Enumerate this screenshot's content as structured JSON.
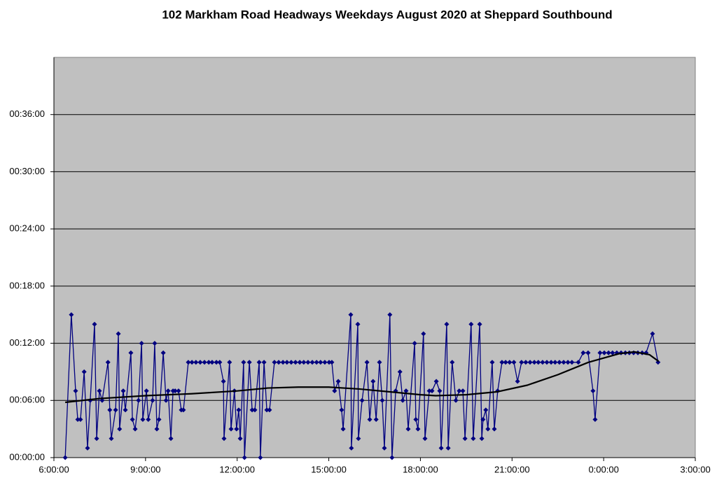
{
  "chart_data": {
    "type": "line",
    "title": "102 Markham Road Headways Weekdays August 2020 at Sheppard Southbound",
    "x": [
      6.37,
      6.57,
      6.71,
      6.78,
      6.87,
      6.99,
      7.1,
      7.19,
      7.33,
      7.4,
      7.49,
      7.58,
      7.77,
      7.83,
      7.88,
      8.02,
      8.11,
      8.15,
      8.27,
      8.34,
      8.52,
      8.57,
      8.66,
      8.77,
      8.87,
      8.91,
      9.03,
      9.09,
      9.23,
      9.3,
      9.37,
      9.44,
      9.58,
      9.67,
      9.74,
      9.83,
      9.9,
      9.97,
      10.08,
      10.17,
      10.24,
      10.4,
      10.52,
      10.65,
      10.79,
      10.93,
      11.07,
      11.18,
      11.32,
      11.43,
      11.55,
      11.57,
      11.75,
      11.8,
      11.91,
      11.98,
      12.05,
      12.1,
      12.21,
      12.24,
      12.4,
      12.49,
      12.58,
      12.72,
      12.76,
      12.88,
      12.97,
      13.06,
      13.22,
      13.36,
      13.5,
      13.63,
      13.77,
      13.91,
      14.05,
      14.18,
      14.32,
      14.46,
      14.6,
      14.73,
      14.87,
      15.01,
      15.1,
      15.19,
      15.31,
      15.42,
      15.47,
      15.72,
      15.74,
      15.95,
      15.97,
      16.09,
      16.25,
      16.34,
      16.45,
      16.55,
      16.66,
      16.75,
      16.82,
      17.0,
      17.07,
      17.19,
      17.33,
      17.42,
      17.53,
      17.6,
      17.81,
      17.85,
      17.92,
      18.1,
      18.15,
      18.29,
      18.38,
      18.52,
      18.63,
      18.68,
      18.86,
      18.91,
      19.04,
      19.16,
      19.27,
      19.39,
      19.46,
      19.66,
      19.73,
      19.94,
      20.01,
      20.05,
      20.14,
      20.21,
      20.35,
      20.42,
      20.53,
      20.67,
      20.79,
      20.92,
      21.06,
      21.18,
      21.31,
      21.45,
      21.59,
      21.73,
      21.86,
      22.0,
      22.14,
      22.28,
      22.41,
      22.55,
      22.69,
      22.83,
      22.96,
      23.17,
      23.33,
      23.49,
      23.65,
      23.72,
      23.88,
      24.02,
      24.16,
      24.29,
      24.43,
      24.57,
      24.71,
      24.84,
      24.98,
      25.12,
      25.26,
      25.39,
      25.6,
      25.78
    ],
    "values": [
      0,
      15,
      7,
      4,
      4,
      9,
      1,
      6,
      14,
      2,
      7,
      6,
      10,
      5,
      2,
      5,
      13,
      3,
      7,
      5,
      11,
      4,
      3,
      6,
      12,
      4,
      7,
      4,
      6,
      12,
      3,
      4,
      11,
      6,
      7,
      2,
      7,
      7,
      7,
      5,
      5,
      10,
      10,
      10,
      10,
      10,
      10,
      10,
      10,
      10,
      8,
      2,
      10,
      3,
      7,
      3,
      5,
      2,
      10,
      0,
      10,
      5,
      5,
      10,
      0,
      10,
      5,
      5,
      10,
      10,
      10,
      10,
      10,
      10,
      10,
      10,
      10,
      10,
      10,
      10,
      10,
      10,
      10,
      7,
      8,
      5,
      3,
      15,
      1,
      14,
      2,
      6,
      10,
      4,
      8,
      4,
      10,
      6,
      1,
      15,
      0,
      7,
      9,
      6,
      7,
      3,
      12,
      4,
      3,
      13,
      2,
      7,
      7,
      8,
      7,
      1,
      14,
      1,
      10,
      6,
      7,
      7,
      2,
      14,
      2,
      14,
      2,
      4,
      5,
      3,
      10,
      3,
      7,
      10,
      10,
      10,
      10,
      8,
      10,
      10,
      10,
      10,
      10,
      10,
      10,
      10,
      10,
      10,
      10,
      10,
      10,
      10,
      11,
      11,
      7,
      4,
      11,
      11,
      11,
      11,
      11,
      11,
      11,
      11,
      11,
      11,
      11,
      11,
      13,
      10
    ],
    "color": "#000080",
    "trendline": {
      "x": [
        6.37,
        7.5,
        9,
        10.5,
        12,
        13,
        14,
        15,
        16,
        17,
        18,
        18.5,
        19.5,
        20.5,
        21.5,
        22.5,
        23.5,
        24.5,
        25,
        25.5,
        25.8
      ],
      "values": [
        5.8,
        6.2,
        6.5,
        6.7,
        7.0,
        7.3,
        7.4,
        7.4,
        7.2,
        6.9,
        6.6,
        6.5,
        6.6,
        6.9,
        7.6,
        8.7,
        10.0,
        10.9,
        11.1,
        10.8,
        10.1
      ],
      "color": "#000000"
    },
    "xlim": [
      6,
      27
    ],
    "xticks": [
      {
        "value": 6,
        "label": "6:00:00"
      },
      {
        "value": 9,
        "label": "9:00:00"
      },
      {
        "value": 12,
        "label": "12:00:00"
      },
      {
        "value": 15,
        "label": "15:00:00"
      },
      {
        "value": 18,
        "label": "18:00:00"
      },
      {
        "value": 21,
        "label": "21:00:00"
      },
      {
        "value": 24,
        "label": "0:00:00"
      },
      {
        "value": 27,
        "label": "3:00:00"
      }
    ],
    "ylim": [
      0,
      42
    ],
    "yticks": [
      {
        "value": 0,
        "label": "00:00:00"
      },
      {
        "value": 6,
        "label": "00:06:00"
      },
      {
        "value": 12,
        "label": "00:12:00"
      },
      {
        "value": 18,
        "label": "00:18:00"
      },
      {
        "value": 24,
        "label": "00:24:00"
      },
      {
        "value": 30,
        "label": "00:30:00"
      },
      {
        "value": 36,
        "label": "00:36:00"
      }
    ],
    "grid": true
  }
}
